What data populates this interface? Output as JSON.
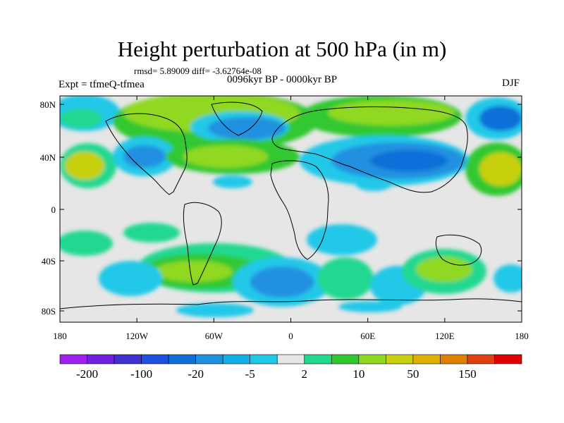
{
  "title": "Height perturbation at 500 hPa (in m)",
  "stats": "rmsd= 5.89009 diff= -3.62764e-08",
  "expt": "Expt = tfmeQ-tfmea",
  "period": "0096kyr BP - 0000kyr BP",
  "season": "DJF",
  "lat_labels": [
    "80N",
    "40N",
    "0",
    "40S",
    "80S"
  ],
  "lon_labels": [
    "180",
    "120W",
    "60W",
    "0",
    "60E",
    "120E",
    "180"
  ],
  "colorbar": {
    "colors": [
      "#a020f0",
      "#7020e0",
      "#4030d0",
      "#2050e0",
      "#1070d8",
      "#2090e0",
      "#10b0e8",
      "#20c8e8",
      "#e6e6e6",
      "#20d890",
      "#30c830",
      "#90d820",
      "#c8d010",
      "#e0b000",
      "#e08000",
      "#e04010",
      "#e00000"
    ],
    "labels": [
      "-200",
      "-100",
      "-20",
      "-5",
      "2",
      "10",
      "50",
      "150"
    ]
  }
}
